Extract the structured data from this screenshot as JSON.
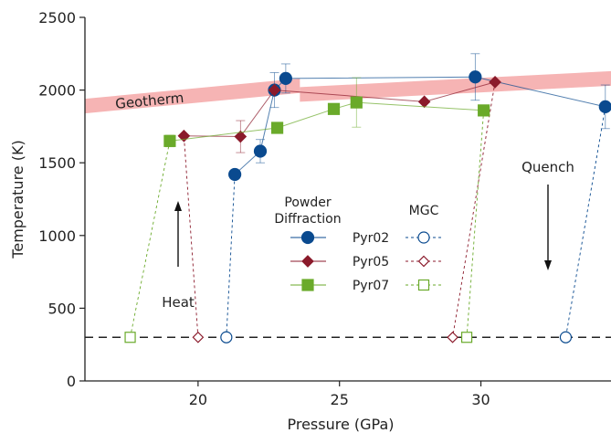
{
  "chart_data": {
    "type": "scatter",
    "xlabel": "Pressure (GPa)",
    "ylabel": "Temperature (K)",
    "xlim": [
      16,
      34.6
    ],
    "ylim": [
      0,
      2500
    ],
    "xticks": [
      20,
      25,
      30
    ],
    "yticks": [
      0,
      500,
      1000,
      1500,
      2000,
      2500
    ],
    "grid": false,
    "colors": {
      "Pyr02": "#0a4a8f",
      "Pyr05": "#8b1a2b",
      "Pyr07": "#6aaa2a",
      "geotherm": "#f4a7a7",
      "quench_line": "#222222"
    },
    "geotherm": {
      "label": "Geotherm",
      "segments": [
        {
          "x": [
            16,
            23.6
          ],
          "y_center": [
            1890,
            2030
          ],
          "half_width": 50
        },
        {
          "x": [
            23.6,
            34.6
          ],
          "y_center": [
            1970,
            2080
          ],
          "half_width": 50
        }
      ]
    },
    "quench_level": 300,
    "series": [
      {
        "name": "Pyr02",
        "powder_diffraction": [
          {
            "x": 21.3,
            "y": 1420
          },
          {
            "x": 22.2,
            "y": 1580,
            "yerr": 80
          },
          {
            "x": 22.7,
            "y": 2000,
            "yerr": 120
          },
          {
            "x": 23.1,
            "y": 2080,
            "yerr": 100
          },
          {
            "x": 29.8,
            "y": 2090,
            "yerr": 160
          },
          {
            "x": 34.4,
            "y": 1885,
            "yerr": 150
          }
        ],
        "mgc": [
          {
            "x": 21.0,
            "y": 300
          },
          {
            "x": 33.0,
            "y": 300
          }
        ]
      },
      {
        "name": "Pyr05",
        "powder_diffraction": [
          {
            "x": 19.5,
            "y": 1685
          },
          {
            "x": 21.5,
            "y": 1680,
            "yerr": 110
          },
          {
            "x": 22.7,
            "y": 2000
          },
          {
            "x": 28.0,
            "y": 1920
          },
          {
            "x": 30.5,
            "y": 2055
          }
        ],
        "mgc": [
          {
            "x": 20.0,
            "y": 300
          },
          {
            "x": 29.0,
            "y": 300
          }
        ]
      },
      {
        "name": "Pyr07",
        "powder_diffraction": [
          {
            "x": 19.0,
            "y": 1650,
            "yerr": 40
          },
          {
            "x": 22.8,
            "y": 1740
          },
          {
            "x": 24.8,
            "y": 1870
          },
          {
            "x": 25.6,
            "y": 1915,
            "yerr": 170
          },
          {
            "x": 30.1,
            "y": 1860
          }
        ],
        "mgc": [
          {
            "x": 17.6,
            "y": 300
          },
          {
            "x": 29.5,
            "y": 300
          }
        ]
      }
    ],
    "annotations": {
      "heat": "Heat",
      "quench": "Quench"
    },
    "legend": {
      "placement": "center-left",
      "powder_header_1": "Powder",
      "powder_header_2": "Diffraction",
      "mgc_header": "MGC",
      "entries": [
        "Pyr02",
        "Pyr05",
        "Pyr07"
      ]
    }
  }
}
